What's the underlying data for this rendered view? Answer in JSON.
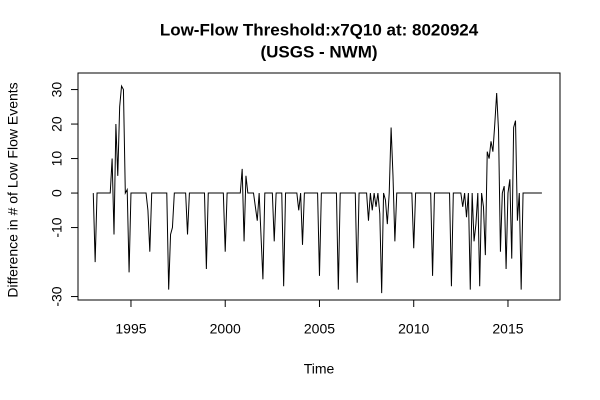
{
  "chart_data": {
    "type": "line",
    "title": "Low-Flow Threshold:x7Q10 at: 8020924",
    "subtitle": "(USGS - NWM)",
    "x_label": "Time",
    "y_label": "Difference in # of Low Flow Events",
    "x": [
      1993.0,
      1993.1,
      1993.2,
      1993.9,
      1994.0,
      1994.1,
      1994.2,
      1994.3,
      1994.4,
      1994.5,
      1994.6,
      1994.7,
      1994.8,
      1994.9,
      1995.0,
      1995.8,
      1995.9,
      1996.0,
      1996.1,
      1996.9,
      1997.0,
      1997.1,
      1997.2,
      1997.3,
      1997.9,
      1998.0,
      1998.1,
      1998.9,
      1999.0,
      1999.1,
      1999.9,
      2000.0,
      2000.1,
      2000.8,
      2000.9,
      2001.0,
      2001.1,
      2001.2,
      2001.5,
      2001.7,
      2001.8,
      2002.0,
      2002.1,
      2002.5,
      2002.6,
      2002.7,
      2003.0,
      2003.1,
      2003.2,
      2003.8,
      2003.9,
      2004.0,
      2004.1,
      2004.2,
      2004.9,
      2005.0,
      2005.1,
      2005.9,
      2006.0,
      2006.1,
      2006.9,
      2007.0,
      2007.1,
      2007.5,
      2007.6,
      2007.7,
      2007.8,
      2007.9,
      2008.0,
      2008.1,
      2008.2,
      2008.3,
      2008.4,
      2008.5,
      2008.6,
      2008.7,
      2008.8,
      2008.9,
      2009.0,
      2009.1,
      2009.9,
      2010.0,
      2010.1,
      2010.9,
      2011.0,
      2011.1,
      2011.9,
      2012.0,
      2012.1,
      2012.5,
      2012.6,
      2012.7,
      2012.8,
      2012.9,
      2013.0,
      2013.1,
      2013.2,
      2013.3,
      2013.4,
      2013.5,
      2013.6,
      2013.7,
      2013.8,
      2013.9,
      2014.0,
      2014.1,
      2014.2,
      2014.3,
      2014.4,
      2014.5,
      2014.6,
      2014.7,
      2014.8,
      2014.9,
      2015.0,
      2015.1,
      2015.2,
      2015.3,
      2015.4,
      2015.5,
      2015.6,
      2015.7,
      2015.8,
      2016.8
    ],
    "series": [
      {
        "color": "#000000",
        "values": [
          0,
          -20,
          0,
          0,
          10,
          -12,
          20,
          5,
          25,
          31,
          30,
          0,
          1,
          -23,
          0,
          0,
          -5,
          -17,
          0,
          0,
          -28,
          -12,
          -10,
          0,
          0,
          -12,
          0,
          0,
          -22,
          0,
          0,
          -17,
          0,
          0,
          7,
          -14,
          5,
          0,
          0,
          -8,
          0,
          -25,
          0,
          0,
          -14,
          0,
          0,
          -27,
          0,
          0,
          -5,
          0,
          -15,
          0,
          0,
          -24,
          0,
          0,
          -28,
          0,
          0,
          -26,
          0,
          0,
          -8,
          0,
          -5,
          0,
          -4,
          0,
          -6,
          -29,
          0,
          -2,
          -9,
          0,
          19,
          5,
          -14,
          0,
          0,
          -16,
          0,
          0,
          -24,
          0,
          0,
          -27,
          0,
          0,
          -4,
          0,
          -7,
          0,
          -28,
          0,
          -14,
          -9,
          0,
          -27,
          0,
          -4,
          -18,
          12,
          10,
          15,
          12,
          20,
          29,
          18,
          -17,
          0,
          2,
          -22,
          0,
          4,
          -19,
          19,
          21,
          -8,
          0,
          -28,
          0,
          0
        ]
      }
    ],
    "xlim": [
      1992.19,
      2017.76
    ],
    "ylim": [
      -31,
      34.8
    ],
    "xticks": [
      1995,
      2000,
      2005,
      2010,
      2015
    ],
    "yticks": [
      -30,
      -10,
      0,
      10,
      20,
      30
    ]
  }
}
